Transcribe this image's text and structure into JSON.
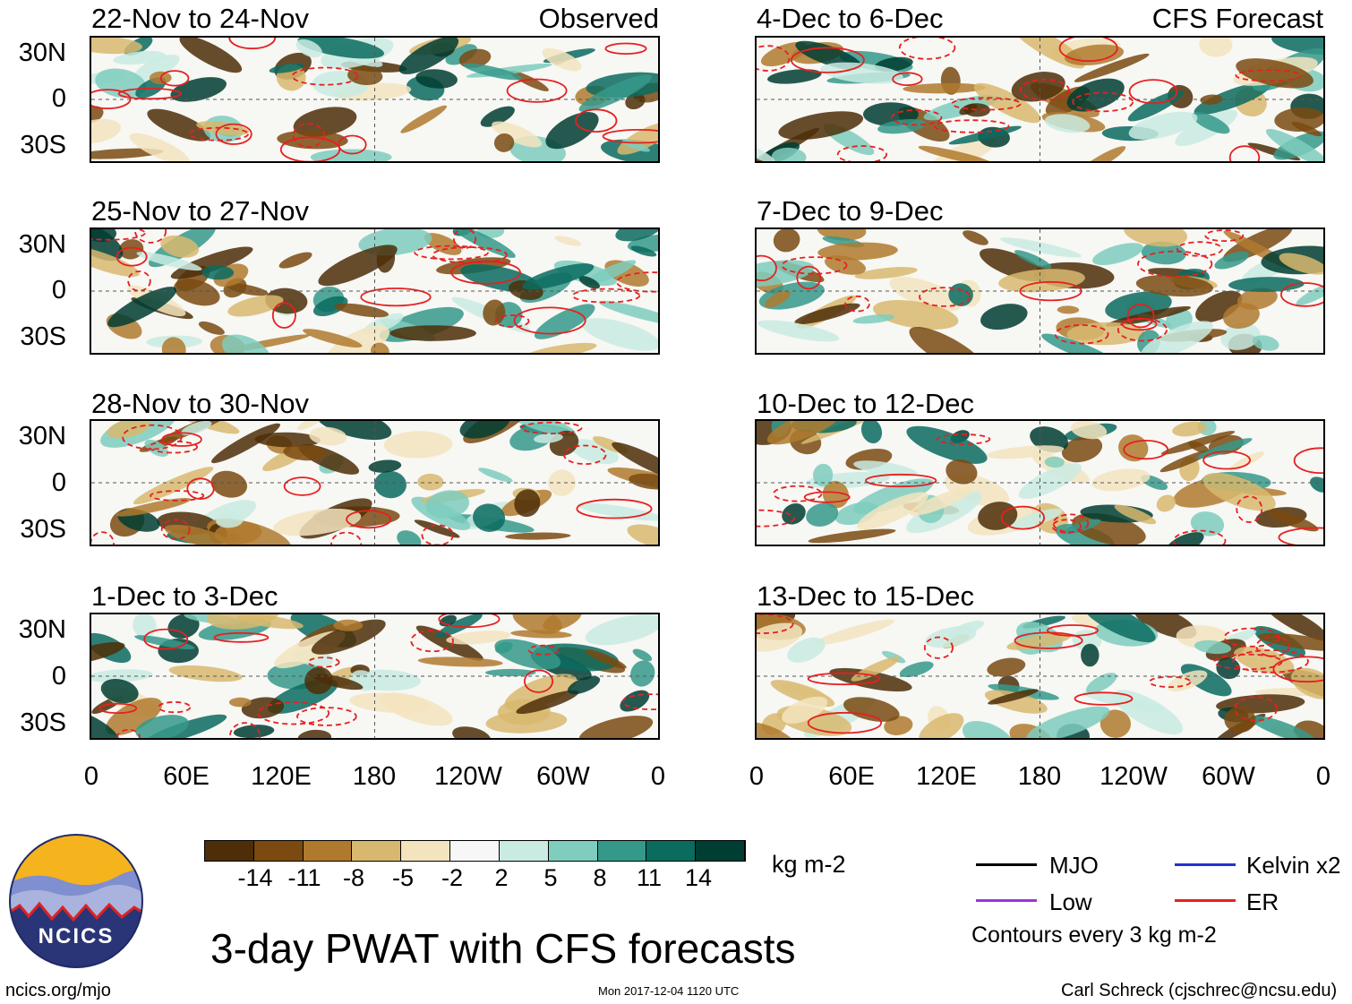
{
  "colors": {
    "mjo": "#000000",
    "low": "#9933dd",
    "kelvin": "#2233cc",
    "er": "#e62020",
    "scale": [
      "#4d2e08",
      "#7a4a10",
      "#b07a2e",
      "#d8b86e",
      "#f3e4be",
      "#f7f7f7",
      "#c9ebe2",
      "#7ecdbd",
      "#35998a",
      "#0b6b5f",
      "#003d33"
    ]
  },
  "panels": [
    {
      "title": "22-Nov to 24-Nov",
      "tag": "Observed"
    },
    {
      "title": "25-Nov to 27-Nov",
      "tag": ""
    },
    {
      "title": "28-Nov to 30-Nov",
      "tag": ""
    },
    {
      "title": "1-Dec to 3-Dec",
      "tag": ""
    },
    {
      "title": "4-Dec to 6-Dec",
      "tag": "CFS Forecast"
    },
    {
      "title": "7-Dec to 9-Dec",
      "tag": ""
    },
    {
      "title": "10-Dec to 12-Dec",
      "tag": ""
    },
    {
      "title": "13-Dec to 15-Dec",
      "tag": ""
    }
  ],
  "lat_labels": [
    "30N",
    "0",
    "30S"
  ],
  "lon_labels": [
    "0",
    "60E",
    "120E",
    "180",
    "120W",
    "60W",
    "0"
  ],
  "colorbar": {
    "ticks": [
      "-14",
      "-11",
      "-8",
      "-5",
      "-2",
      "2",
      "5",
      "8",
      "11",
      "14"
    ],
    "units": "kg m-2"
  },
  "legend": {
    "mjo": "MJO",
    "kelvin": "Kelvin x2",
    "low": "Low",
    "er": "ER",
    "note": "Contours every 3 kg m-2"
  },
  "title": "3-day PWAT with CFS forecasts",
  "logo_text": "NCICS",
  "footer": {
    "url": "ncics.org/mjo",
    "timestamp": "Mon 2017-12-04 1120 UTC",
    "credit": "Carl Schreck (cjschrec@ncsu.edu)"
  }
}
